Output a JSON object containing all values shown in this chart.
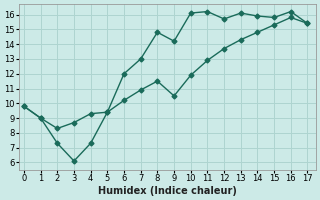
{
  "xlabel": "Humidex (Indice chaleur)",
  "bg_color": "#cceae7",
  "grid_color": "#aed4d0",
  "line_color": "#1a6b5a",
  "line1_x": [
    0,
    1,
    2,
    3,
    4,
    5,
    6,
    7,
    8,
    9,
    10,
    11,
    12,
    13,
    14,
    15,
    16,
    17
  ],
  "line1_y": [
    9.8,
    9.0,
    7.3,
    6.1,
    7.3,
    9.4,
    12.0,
    13.0,
    14.8,
    14.2,
    16.1,
    16.2,
    15.7,
    16.1,
    15.9,
    15.8,
    16.2,
    15.4
  ],
  "line2_x": [
    0,
    1,
    2,
    3,
    4,
    5,
    6,
    7,
    8,
    9,
    10,
    11,
    12,
    13,
    14,
    15,
    16,
    17
  ],
  "line2_y": [
    9.8,
    9.0,
    8.3,
    8.7,
    9.3,
    9.4,
    10.2,
    10.9,
    11.5,
    10.5,
    11.9,
    12.9,
    13.7,
    14.3,
    14.8,
    15.3,
    15.8,
    15.4
  ],
  "xlim": [
    -0.3,
    17.5
  ],
  "ylim": [
    5.5,
    16.7
  ],
  "xticks": [
    0,
    1,
    2,
    3,
    4,
    5,
    6,
    7,
    8,
    9,
    10,
    11,
    12,
    13,
    14,
    15,
    16,
    17
  ],
  "yticks": [
    6,
    7,
    8,
    9,
    10,
    11,
    12,
    13,
    14,
    15,
    16
  ],
  "marker": "D",
  "marker_size": 2.5,
  "linewidth": 1.0,
  "xlabel_fontsize": 7.0,
  "tick_fontsize": 6.0
}
